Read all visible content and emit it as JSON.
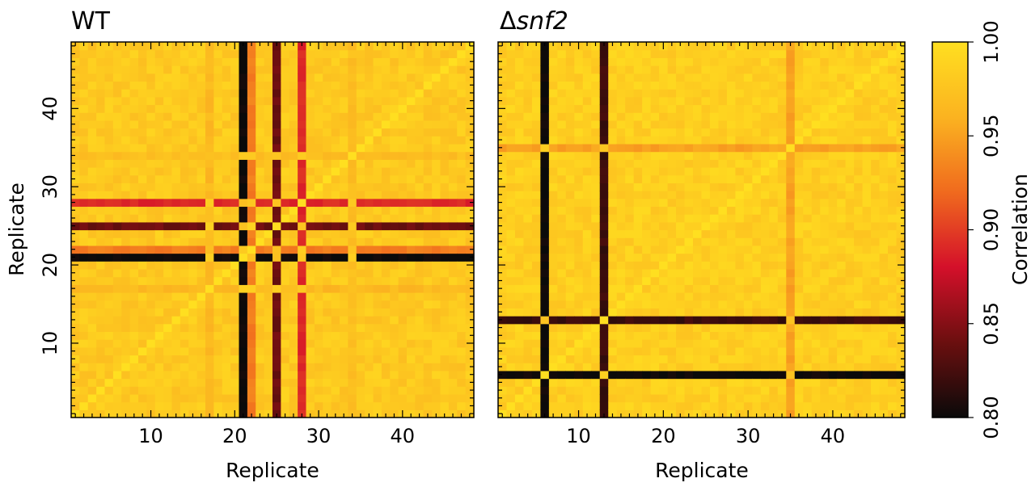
{
  "chart_data": [
    {
      "type": "heatmap",
      "title": "WT",
      "xlabel": "Replicate",
      "ylabel": "Replicate",
      "n": 48,
      "xlim": [
        0.5,
        48.5
      ],
      "ylim": [
        0.5,
        48.5
      ],
      "xticks": [
        10,
        20,
        30,
        40
      ],
      "yticks": [
        10,
        20,
        30,
        40
      ],
      "base_correlation": 0.98,
      "low_correlation_replicates": [
        {
          "replicate": 21,
          "value": 0.8
        },
        {
          "replicate": 22,
          "value": 0.93
        },
        {
          "replicate": 25,
          "value": 0.84
        },
        {
          "replicate": 28,
          "value": 0.89
        }
      ],
      "mild_replicates": [
        {
          "replicate": 17,
          "value": 0.965
        },
        {
          "replicate": 34,
          "value": 0.97
        }
      ]
    },
    {
      "type": "heatmap",
      "title": "Δsnf2",
      "title_prefix": "Δ",
      "title_italic": "snf2",
      "xlabel": "Replicate",
      "ylabel": "",
      "n": 48,
      "xlim": [
        0.5,
        48.5
      ],
      "ylim": [
        0.5,
        48.5
      ],
      "xticks": [
        10,
        20,
        30,
        40
      ],
      "yticks": [
        10,
        20,
        30,
        40
      ],
      "base_correlation": 0.985,
      "low_correlation_replicates": [
        {
          "replicate": 6,
          "value": 0.8
        },
        {
          "replicate": 13,
          "value": 0.82
        },
        {
          "replicate": 35,
          "value": 0.95
        }
      ],
      "mild_replicates": []
    }
  ],
  "colorbar": {
    "label": "Correlation",
    "min": 0.8,
    "max": 1.0,
    "ticks": [
      "0.80",
      "0.85",
      "0.90",
      "0.95",
      "1.00"
    ],
    "colormap": "hot",
    "stops": [
      "#0a0a0a",
      "#6b0f0f",
      "#d4102a",
      "#f06a1e",
      "#fbb320",
      "#ffdf20"
    ]
  }
}
